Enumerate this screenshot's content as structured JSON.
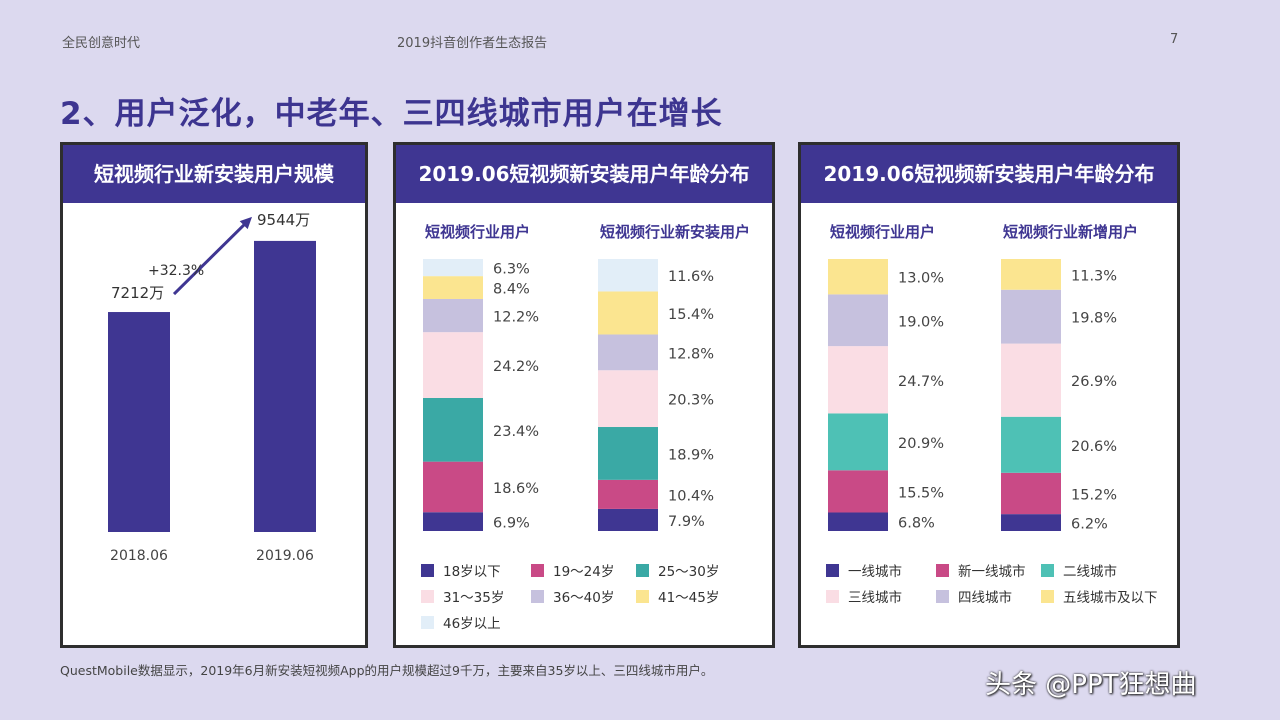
{
  "header": {
    "left": "全民创意时代",
    "center": "2019抖音创作者生态报告",
    "page": "7"
  },
  "title": "2、用户泛化，中老年、三四线城市用户在增长",
  "footnote": "QuestMobile数据显示，2019年6月新安装短视频App的用户规模超过9千万，主要来自35岁以上、三四线城市用户。",
  "watermark": "头条 @PPT狂想曲",
  "colors": {
    "bar": "#3f3692",
    "age": [
      "#3f3692",
      "#c94a86",
      "#3aa9a5",
      "#fadde4",
      "#c6c1de",
      "#fbe590",
      "#e2eef8"
    ],
    "city": [
      "#3f3692",
      "#c94a86",
      "#4ec1b5",
      "#fadde4",
      "#c6c1de",
      "#fbe590"
    ]
  },
  "chart_data": [
    {
      "type": "bar",
      "title": "短视频行业新安装用户规模",
      "categories": [
        "2018.06",
        "2019.06"
      ],
      "values": [
        7212,
        9544
      ],
      "data_labels": [
        "7212万",
        "9544万"
      ],
      "annotation": "+32.3%",
      "ylim": [
        0,
        10000
      ]
    },
    {
      "type": "bar",
      "stacked": true,
      "title": "2019.06短视频新安装用户年龄分布",
      "categories": [
        "短视频行业用户",
        "短视频行业新安装用户"
      ],
      "series": [
        {
          "name": "18岁以下",
          "values": [
            6.9,
            7.9
          ]
        },
        {
          "name": "19～24岁",
          "values": [
            18.6,
            10.4
          ]
        },
        {
          "name": "25～30岁",
          "values": [
            23.4,
            18.9
          ]
        },
        {
          "name": "31～35岁",
          "values": [
            24.2,
            20.3
          ]
        },
        {
          "name": "36～40岁",
          "values": [
            12.2,
            12.8
          ]
        },
        {
          "name": "41～45岁",
          "values": [
            8.4,
            15.4
          ]
        },
        {
          "name": "46岁以上",
          "values": [
            6.3,
            11.6
          ]
        }
      ],
      "value_suffix": "%",
      "legend": "bottom"
    },
    {
      "type": "bar",
      "stacked": true,
      "title": "2019.06短视频新安装用户年龄分布",
      "categories": [
        "短视频行业用户",
        "短视频行业新增用户"
      ],
      "series": [
        {
          "name": "一线城市",
          "values": [
            6.8,
            6.2
          ]
        },
        {
          "name": "新一线城市",
          "values": [
            15.5,
            15.2
          ]
        },
        {
          "name": "二线城市",
          "values": [
            20.9,
            20.6
          ]
        },
        {
          "name": "三线城市",
          "values": [
            24.7,
            26.9
          ]
        },
        {
          "name": "四线城市",
          "values": [
            19.0,
            19.8
          ]
        },
        {
          "name": "五线城市及以下",
          "values": [
            13.0,
            11.3
          ]
        }
      ],
      "value_suffix": "%",
      "legend": "bottom"
    }
  ]
}
